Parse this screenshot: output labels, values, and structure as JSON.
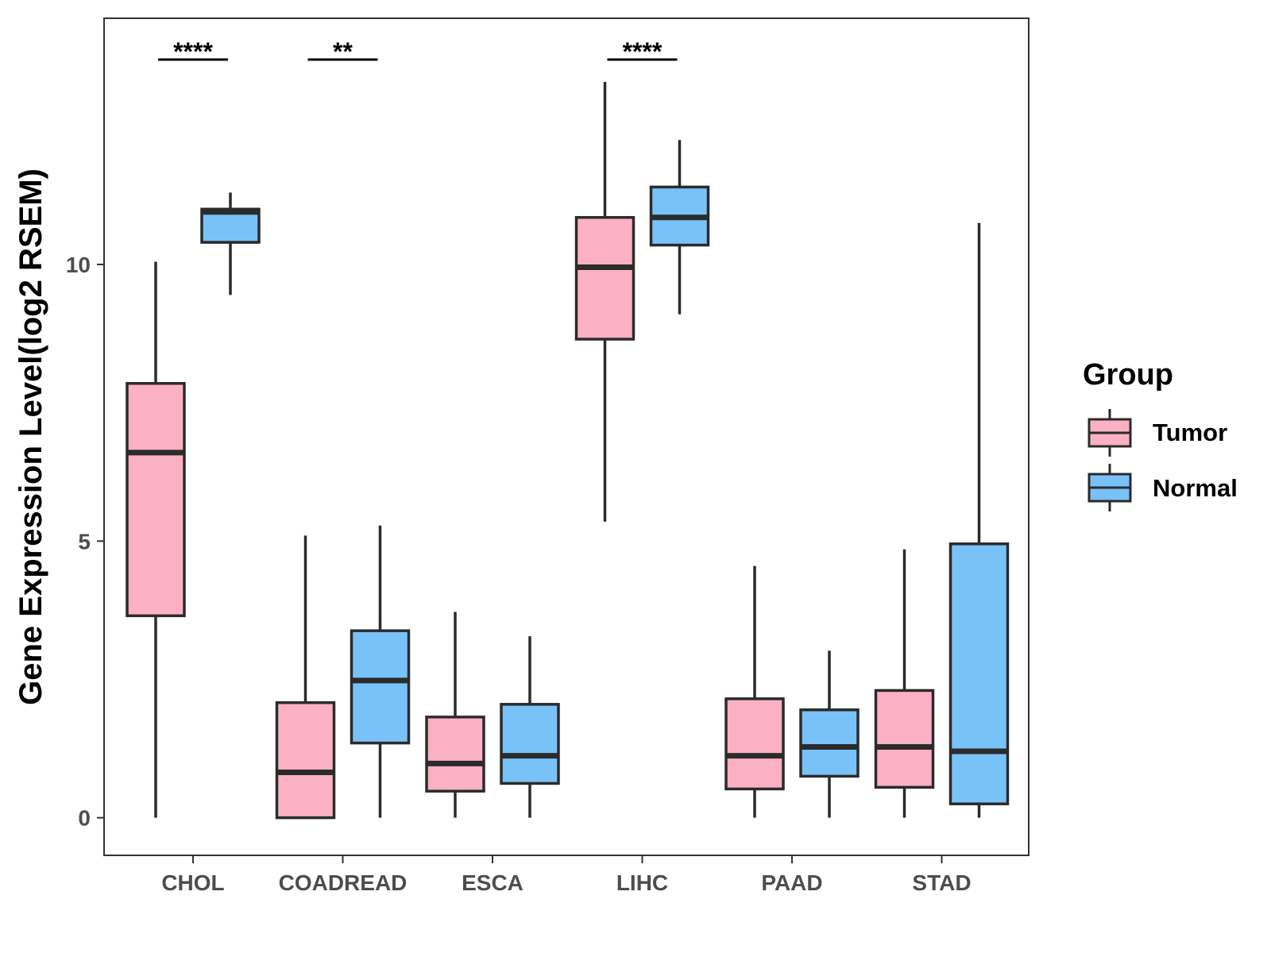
{
  "colors": {
    "tumor": "#FBB1C3",
    "normal": "#78C2F8",
    "stroke": "#2b2b2b",
    "panel_border": "#333333"
  },
  "chart_data": {
    "type": "box",
    "title": "",
    "xlabel": "",
    "ylabel": "Gene Expression Level(log2 RSEM)",
    "ylim": [
      -0.68,
      14.45
    ],
    "yticks": [
      0,
      5,
      10
    ],
    "ytick_labels": [
      "0",
      "5",
      "10"
    ],
    "categories": [
      "CHOL",
      "COADREAD",
      "ESCA",
      "LIHC",
      "PAAD",
      "STAD"
    ],
    "legend": {
      "title": "Group",
      "position": "right",
      "entries": [
        "Tumor",
        "Normal"
      ]
    },
    "series": [
      {
        "name": "Tumor",
        "boxes": [
          {
            "category": "CHOL",
            "low": 0.0,
            "q1": 3.65,
            "median": 6.6,
            "q3": 7.85,
            "high": 10.05
          },
          {
            "category": "COADREAD",
            "low": 0.0,
            "q1": 0.0,
            "median": 0.82,
            "q3": 2.08,
            "high": 5.1
          },
          {
            "category": "ESCA",
            "low": 0.0,
            "q1": 0.48,
            "median": 0.98,
            "q3": 1.82,
            "high": 3.72
          },
          {
            "category": "LIHC",
            "low": 5.35,
            "q1": 8.65,
            "median": 9.95,
            "q3": 10.85,
            "high": 13.3
          },
          {
            "category": "PAAD",
            "low": 0.0,
            "q1": 0.52,
            "median": 1.12,
            "q3": 2.15,
            "high": 4.55
          },
          {
            "category": "STAD",
            "low": 0.0,
            "q1": 0.55,
            "median": 1.28,
            "q3": 2.3,
            "high": 4.85
          }
        ]
      },
      {
        "name": "Normal",
        "boxes": [
          {
            "category": "CHOL",
            "low": 9.45,
            "q1": 10.4,
            "median": 10.95,
            "q3": 11.0,
            "high": 11.3
          },
          {
            "category": "COADREAD",
            "low": 0.0,
            "q1": 1.35,
            "median": 2.48,
            "q3": 3.38,
            "high": 5.28
          },
          {
            "category": "ESCA",
            "low": 0.0,
            "q1": 0.62,
            "median": 1.12,
            "q3": 2.05,
            "high": 3.28
          },
          {
            "category": "LIHC",
            "low": 9.1,
            "q1": 10.35,
            "median": 10.85,
            "q3": 11.4,
            "high": 12.25
          },
          {
            "category": "PAAD",
            "low": 0.0,
            "q1": 0.75,
            "median": 1.28,
            "q3": 1.95,
            "high": 3.02
          },
          {
            "category": "STAD",
            "low": 0.0,
            "q1": 0.25,
            "median": 1.2,
            "q3": 4.95,
            "high": 10.75
          }
        ]
      }
    ],
    "annotations": [
      {
        "category": "CHOL",
        "label": "****"
      },
      {
        "category": "COADREAD",
        "label": "**"
      },
      {
        "category": "LIHC",
        "label": "****"
      }
    ]
  }
}
